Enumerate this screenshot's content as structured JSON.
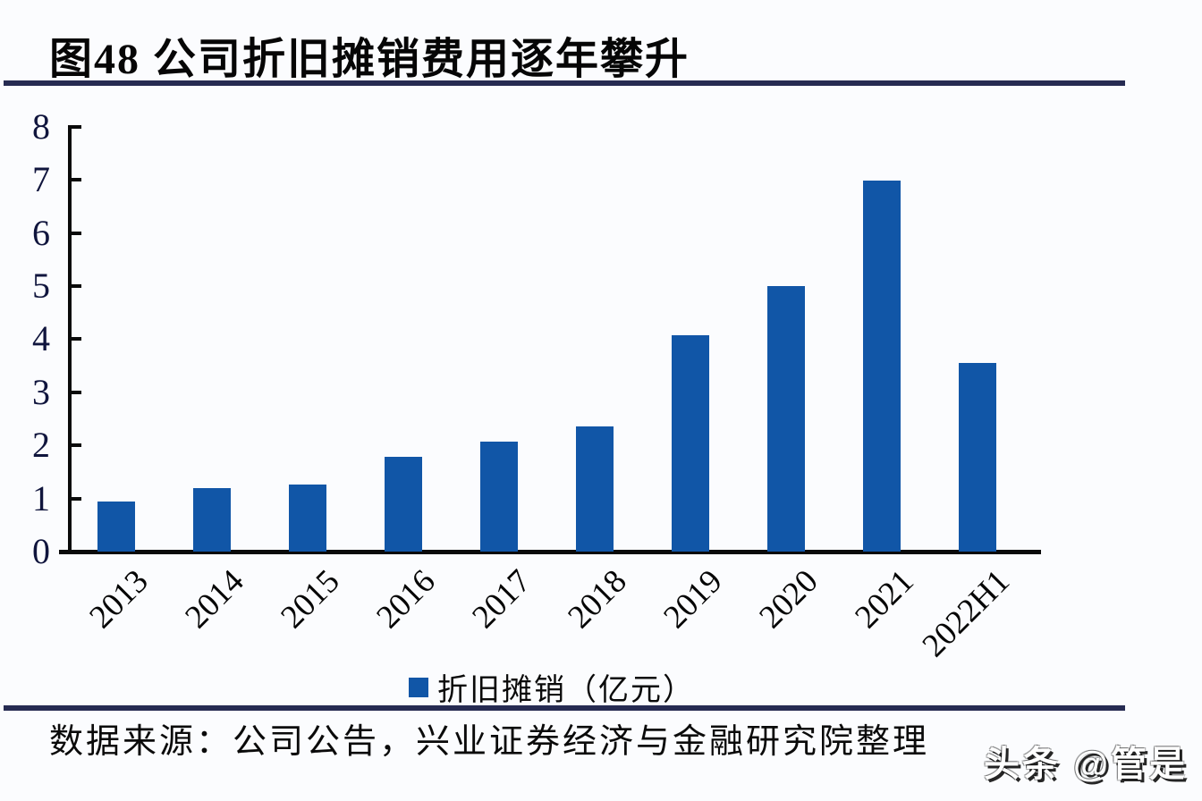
{
  "title": "图48 公司折旧摊销费用逐年攀升",
  "legend": {
    "label": "折旧摊销（亿元）"
  },
  "source": "数据来源：公司公告，兴业证券经济与金融研究院整理",
  "watermark": "头条 @管是",
  "colors": {
    "bar": "#1156a7",
    "divider": "#262b52",
    "axis": "#0a0a0a"
  },
  "chart_data": {
    "type": "bar",
    "title": "图48 公司折旧摊销费用逐年攀升",
    "categories": [
      "2013",
      "2014",
      "2015",
      "2016",
      "2017",
      "2018",
      "2019",
      "2020",
      "2021",
      "2022H1"
    ],
    "values": [
      0.95,
      1.2,
      1.27,
      1.78,
      2.07,
      2.36,
      4.08,
      5.0,
      6.98,
      3.55
    ],
    "series_name": "折旧摊销（亿元）",
    "xlabel": "",
    "ylabel": "",
    "ylim": [
      0,
      8
    ],
    "yticks": [
      0,
      1,
      2,
      3,
      4,
      5,
      6,
      7,
      8
    ],
    "grid": false,
    "legend_position": "bottom",
    "x_tick_rotation": 45
  }
}
